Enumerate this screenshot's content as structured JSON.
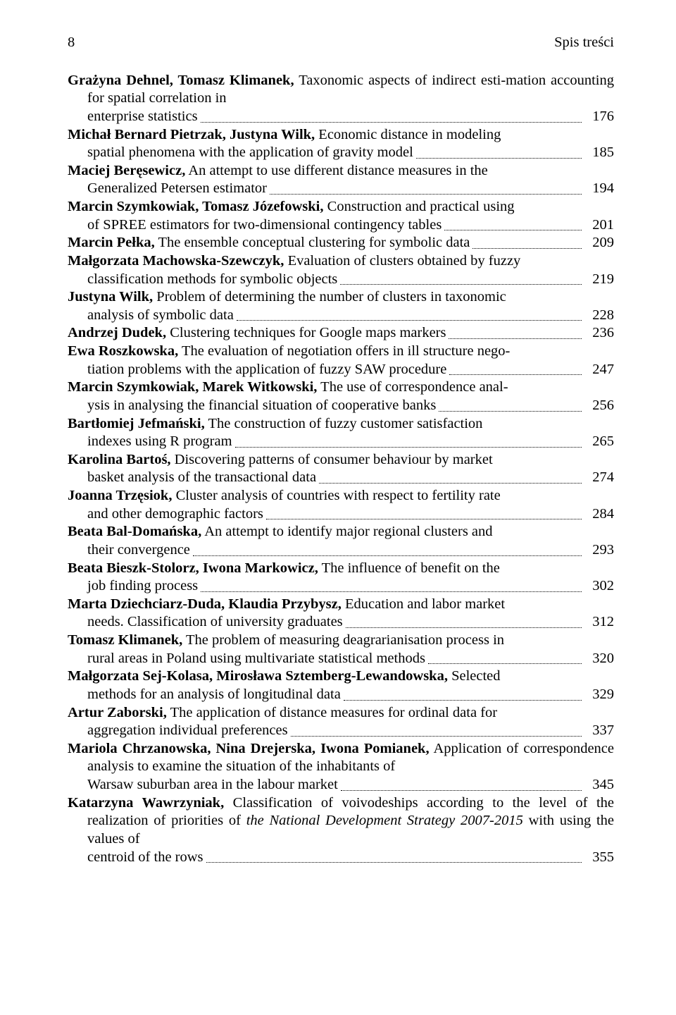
{
  "page": {
    "number": "8",
    "running_head": "Spis treści"
  },
  "entries": [
    {
      "author": "Grażyna Dehnel, Tomasz Klimanek,",
      "pre": " Taxonomic aspects of indirect esti-mation accounting for spatial correlation in enterprise statistics",
      "last": "",
      "page": "176"
    },
    {
      "author": "Michał Bernard Pietrzak, Justyna Wilk,",
      "pre": " Economic distance in modeling",
      "last": "spatial phenomena with the application of gravity model",
      "page": "185"
    },
    {
      "author": "Maciej Beręsewicz,",
      "pre": " An attempt to use different distance measures in the",
      "last": "Generalized Petersen estimator",
      "page": "194"
    },
    {
      "author": "Marcin Szymkowiak, Tomasz Józefowski,",
      "pre": " Construction and practical using",
      "last": "of SPREE estimators for two-dimensional contingency tables",
      "page": "201"
    },
    {
      "author": "Marcin Pełka,",
      "pre": " The ensemble conceptual clustering for symbolic data",
      "last": "",
      "page": "209"
    },
    {
      "author": "Małgorzata Machowska-Szewczyk,",
      "pre": " Evaluation of clusters obtained by fuzzy",
      "last": "classification methods for symbolic objects",
      "page": "219"
    },
    {
      "author": "Justyna Wilk,",
      "pre": " Problem of determining the number of clusters in taxonomic",
      "last": "analysis of symbolic data",
      "page": "228"
    },
    {
      "author": "Andrzej Dudek,",
      "pre": " Clustering techniques for Google maps markers",
      "last": "",
      "page": "236"
    },
    {
      "author": "Ewa Roszkowska,",
      "pre": " The evaluation of negotiation offers in ill structure nego-",
      "last": "tiation problems with the application of fuzzy SAW procedure",
      "page": "247"
    },
    {
      "author": "Marcin Szymkowiak, Marek Witkowski,",
      "pre": " The use of correspondence anal-",
      "last": "ysis in analysing the financial situation of cooperative banks",
      "page": "256"
    },
    {
      "author": "Bartłomiej Jefmański,",
      "pre": " The construction of fuzzy customer satisfaction",
      "last": "indexes using R program",
      "page": "265"
    },
    {
      "author": "Karolina Bartoś,",
      "pre": " Discovering patterns of consumer behaviour by market",
      "last": "basket analysis of the transactional data",
      "page": "274"
    },
    {
      "author": "Joanna Trzęsiok,",
      "pre": " Cluster analysis of countries with respect to fertility rate",
      "last": "and other demographic factors",
      "page": "284"
    },
    {
      "author": "Beata Bal-Domańska,",
      "pre": " An attempt to identify major regional clusters and",
      "last": "their convergence",
      "page": "293"
    },
    {
      "author": "Beata Bieszk-Stolorz, Iwona Markowicz,",
      "pre": " The influence of benefit on the",
      "last": "job finding process",
      "page": "302"
    },
    {
      "author": "Marta Dziechciarz-Duda, Klaudia Przybysz,",
      "pre": " Education and labor market",
      "last": "needs. Classification of university graduates",
      "page": "312"
    },
    {
      "author": "Tomasz Klimanek,",
      "pre": " The problem of measuring deagrarianisation process in",
      "last": "rural areas in Poland using multivariate statistical methods",
      "page": "320"
    },
    {
      "author": "Małgorzata Sej-Kolasa, Mirosława Sztemberg-Lewandowska,",
      "pre": " Selected",
      "last": "methods for an analysis of longitudinal data",
      "page": "329"
    },
    {
      "author": "Artur Zaborski,",
      "pre": " The application of distance measures for ordinal data for",
      "last": "aggregation individual preferences",
      "page": "337"
    },
    {
      "author": "Mariola Chrzanowska, Nina Drejerska, Iwona Pomianek,",
      "pre": " Application of correspondence analysis to examine the situation of the inhabitants of",
      "last": "Warsaw suburban area in the labour market",
      "page": "345"
    },
    {
      "author": "Katarzyna Wawrzyniak,",
      "pre": " Classification of voivodeships according to the level of the realization of priorities of ",
      "ital": "the National Development Strategy 2007-2015",
      "post": " with using the values of centroid of the rows",
      "last": "",
      "page": "355"
    }
  ]
}
